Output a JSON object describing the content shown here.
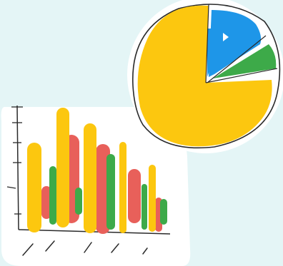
{
  "illustration": {
    "subject": "hand-drawn-charts",
    "colors": {
      "background": "#e4f5f6",
      "card": "#ffffff",
      "ink": "#2a2a2a",
      "yellow": "#fcc70f",
      "red": "#e8605a",
      "green": "#3daa49",
      "blue": "#1e96e8"
    }
  }
}
